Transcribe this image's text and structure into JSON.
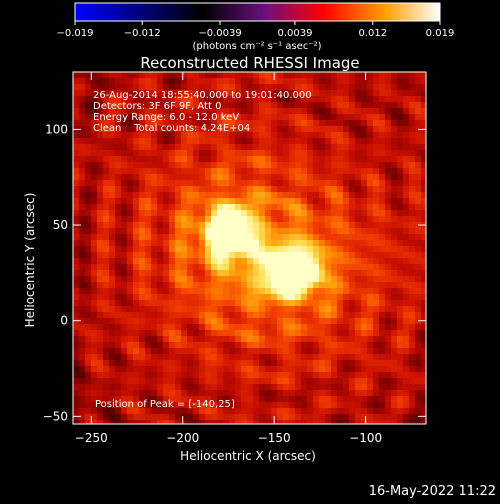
{
  "chart_data": {
    "type": "heatmap",
    "title": "Reconstructed RHESSI Image",
    "xlabel": "Heliocentric X (arcsec)",
    "ylabel": "Heliocentric Y (arcsec)",
    "xlim": [
      -260,
      -67
    ],
    "ylim": [
      -54,
      130
    ],
    "x_ticks": [
      -250,
      -200,
      -150,
      -100
    ],
    "y_ticks": [
      -50,
      0,
      50,
      100
    ],
    "x_tick_labels": [
      "−250",
      "−200",
      "−150",
      "−100"
    ],
    "y_tick_labels": [
      "−50",
      "0",
      "50",
      "100"
    ],
    "sources": [
      {
        "x": -175,
        "y": 46,
        "sx": 9,
        "sy": 9,
        "amp": 0.85
      },
      {
        "x": -140,
        "y": 26,
        "sx": 10,
        "sy": 8,
        "amp": 1.0
      }
    ],
    "peak": [
      -140,
      25
    ],
    "colorbar": {
      "min": -0.019,
      "max": 0.019,
      "ticks": [
        -0.019,
        -0.012,
        -0.0039,
        0.0039,
        0.012,
        0.019
      ],
      "tick_labels": [
        "−0.019",
        "−0.012",
        "−0.0039",
        "0.0039",
        "0.012",
        "0.019"
      ],
      "unit_label": "(photons cm⁻² s⁻¹ asec⁻²)",
      "colors": [
        "#0000ff",
        "#000000",
        "#800080",
        "#ff0000",
        "#ffa000",
        "#ffffff"
      ]
    },
    "annotations": {
      "time_range": "26-Aug-2014 18:55:40.000 to 19:01:40.000",
      "detectors": "Detectors: 3F 6F 9F, Att 0",
      "energy": "Energy Range: 6.0 - 12.0 keV",
      "method": "Clean    Total counts: 4.24E+04",
      "peak_label": "Position of Peak = [-140,25]"
    },
    "footer_date": "16-May-2022 11:22"
  }
}
